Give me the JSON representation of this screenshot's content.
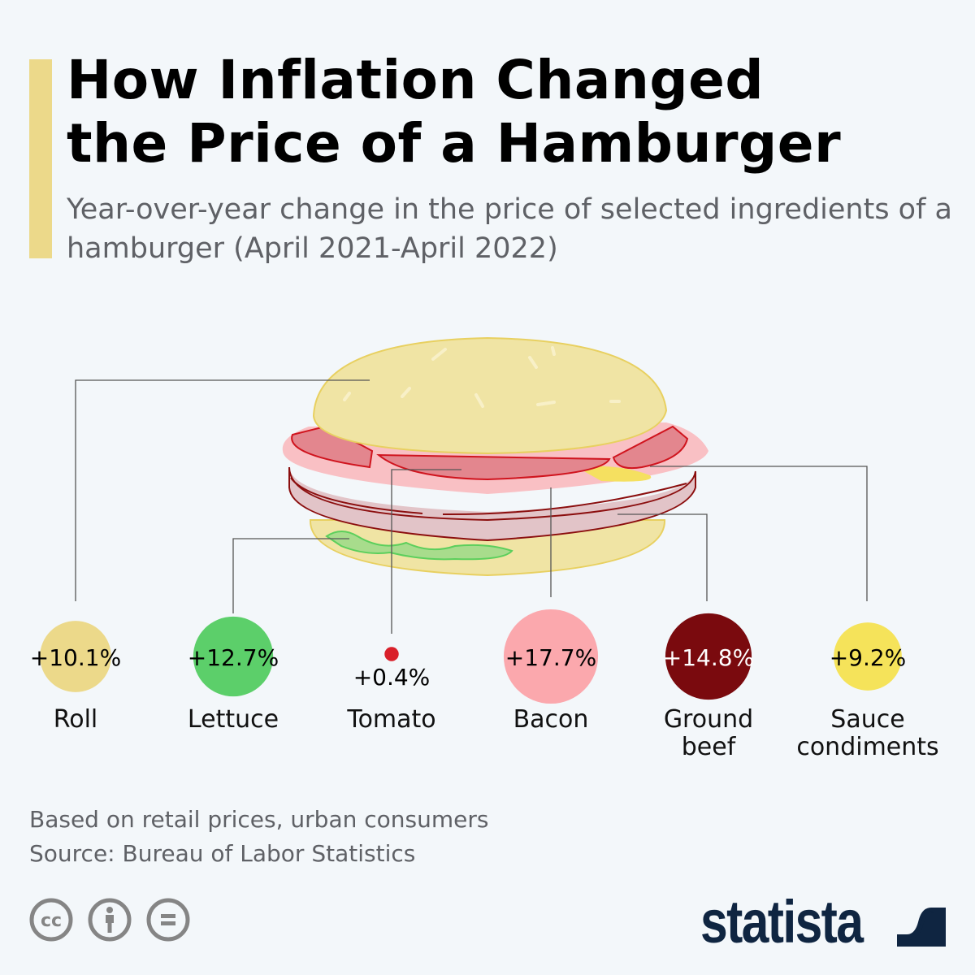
{
  "header": {
    "title_line1": "How Inflation Changed",
    "title_line2": "the Price of a Hamburger",
    "subtitle": "Year-over-year change in the price of selected ingredients of a hamburger (April 2021-April 2022)"
  },
  "chart_data": {
    "type": "bubble",
    "title": "How Inflation Changed the Price of a Hamburger",
    "subtitle": "Year-over-year change in the price of selected ingredients of a hamburger (April 2021-April 2022)",
    "unit": "%",
    "categories": [
      "Roll",
      "Lettuce",
      "Tomato",
      "Bacon",
      "Ground beef",
      "Sauce condiments"
    ],
    "values": [
      10.1,
      12.7,
      0.4,
      17.7,
      14.8,
      9.2
    ],
    "labels": [
      "+10.1%",
      "+12.7%",
      "+0.4%",
      "+17.7%",
      "+14.8%",
      "+9.2%"
    ],
    "colors": [
      "#ecd98a",
      "#5ccf6a",
      "#d9202a",
      "#fba8ad",
      "#7a0a0e",
      "#f5e35a"
    ],
    "label_colors": [
      "#000000",
      "#000000",
      "#000000",
      "#000000",
      "#ffffff",
      "#000000"
    ]
  },
  "footer": {
    "note": "Based on retail prices, urban consumers",
    "source": "Source: Bureau of Labor Statistics",
    "license_icons": [
      "creative-commons-icon",
      "attribution-icon",
      "no-derivatives-icon"
    ],
    "brand": "statista"
  }
}
